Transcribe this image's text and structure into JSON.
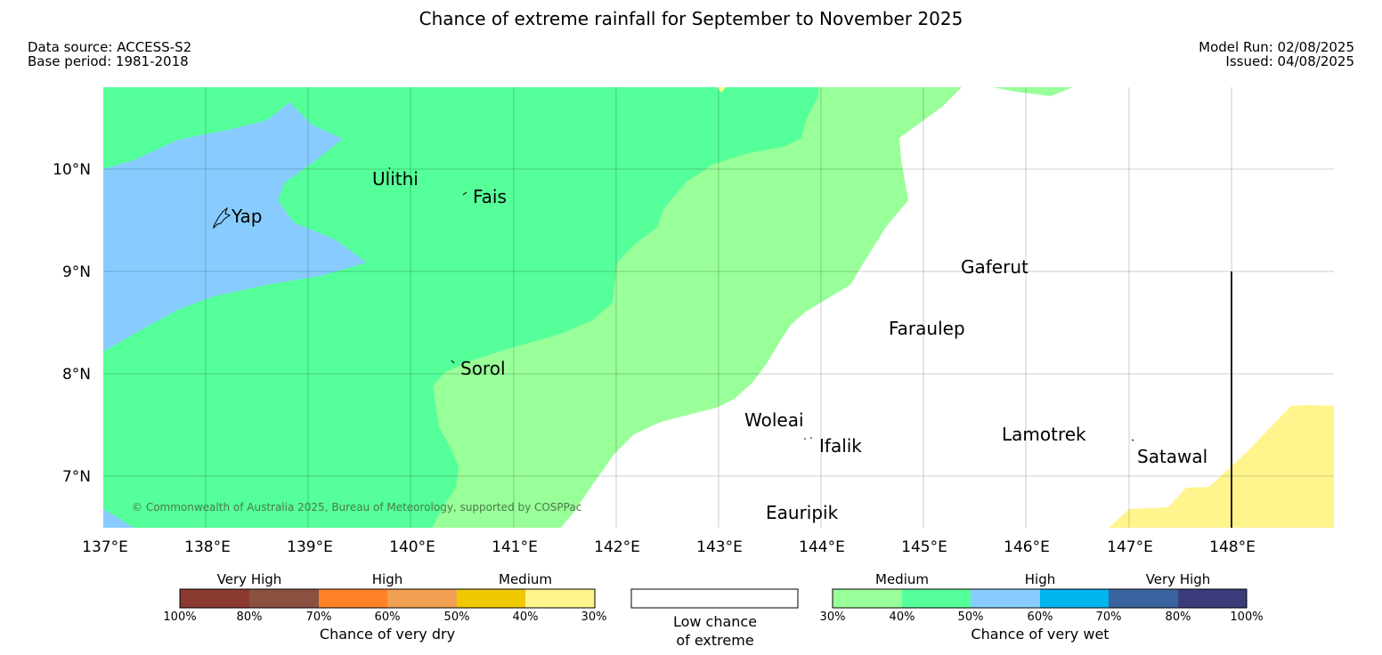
{
  "header": {
    "title": "Chance of extreme rainfall for September to November 2025",
    "data_source": "Data source: ACCESS-S2",
    "base_period": "Base period: 1981-2018",
    "model_run": "Model Run: 02/08/2025",
    "issued": "Issued: 04/08/2025"
  },
  "map": {
    "lon_ticks": [
      "137°E",
      "138°E",
      "139°E",
      "140°E",
      "141°E",
      "142°E",
      "143°E",
      "144°E",
      "145°E",
      "146°E",
      "147°E",
      "148°E"
    ],
    "lat_ticks": [
      "10°N",
      "9°N",
      "8°N",
      "7°N"
    ],
    "places": [
      "Yap",
      "Ulithi",
      "Fais",
      "Sorol",
      "Gaferut",
      "Faraulep",
      "Woleai",
      "Ifalik",
      "Lamotrek",
      "Satawal",
      "Eauripik"
    ],
    "copyright": "© Commonwealth of Australia 2025, Bureau of Meteorology, supported by COSPPac",
    "colors": {
      "wet_medium_30_40": "#99ff99",
      "wet_medium_40_50": "#55ff99",
      "wet_high_50_60": "#88ccff",
      "dry_medium_30_40": "#fff58c",
      "low_chance": "#ffffff"
    }
  },
  "legend": {
    "dry": {
      "headers": [
        "Very High",
        "High",
        "Medium"
      ],
      "percents": [
        "100%",
        "80%",
        "70%",
        "60%",
        "50%",
        "40%",
        "30%"
      ],
      "colors": [
        "#8b3a32",
        "#8b5040",
        "#ff8228",
        "#f0a050",
        "#f0c800",
        "#fff58c"
      ],
      "caption": "Chance of very dry"
    },
    "low": {
      "caption_line1": "Low chance",
      "caption_line2": "of extreme"
    },
    "wet": {
      "headers": [
        "Medium",
        "High",
        "Very High"
      ],
      "percents": [
        "30%",
        "40%",
        "50%",
        "60%",
        "70%",
        "80%",
        "100%"
      ],
      "colors": [
        "#99ff99",
        "#55ff99",
        "#88ccff",
        "#00b4f0",
        "#3a64a0",
        "#3c3c7c"
      ],
      "caption": "Chance of very wet"
    }
  }
}
